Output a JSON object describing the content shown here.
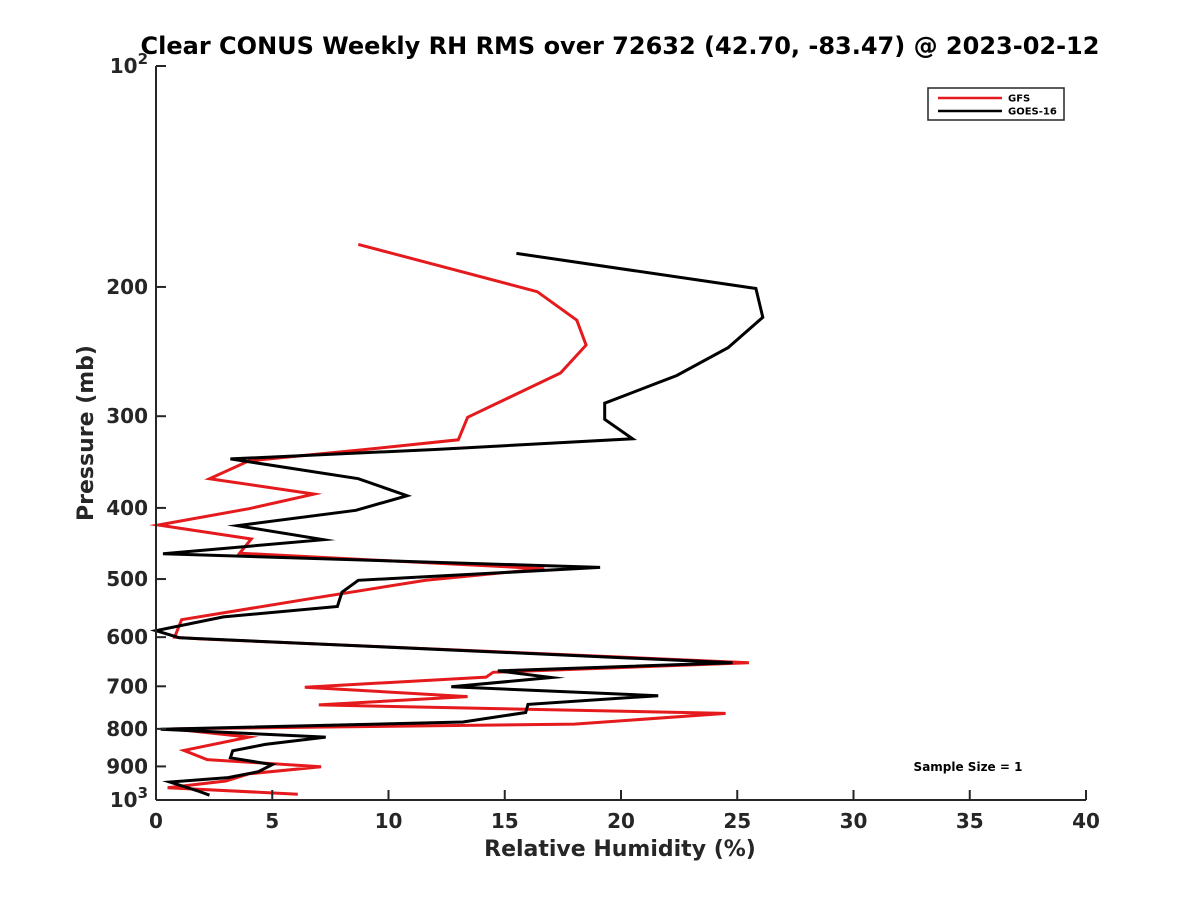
{
  "chart_data": {
    "type": "line",
    "title": "Clear CONUS Weekly RH RMS over 72632 (42.70, -83.47) @ 2023-02-12",
    "xlabel": "Relative Humidity (%)",
    "ylabel": "Pressure (mb)",
    "xlim": [
      0,
      40
    ],
    "ylim": [
      1000,
      100
    ],
    "yscale": "log",
    "y_reversed": true,
    "grid": false,
    "legend_position": "top-right",
    "x_ticks": [
      0,
      5,
      10,
      15,
      20,
      25,
      30,
      35,
      40
    ],
    "x_tick_labels": [
      "0",
      "5",
      "10",
      "15",
      "20",
      "25",
      "30",
      "35",
      "40"
    ],
    "y_ticks": [
      100,
      200,
      300,
      400,
      500,
      600,
      700,
      800,
      900,
      1000
    ],
    "y_tick_labels": [
      {
        "base": "10",
        "exp": "2"
      },
      {
        "base": "200"
      },
      {
        "base": "300"
      },
      {
        "base": "400"
      },
      {
        "base": "500"
      },
      {
        "base": "600"
      },
      {
        "base": "700"
      },
      {
        "base": "800"
      },
      {
        "base": "900"
      },
      {
        "base": "10",
        "exp": "3"
      }
    ],
    "annotation": "Sample Size = 1",
    "series": [
      {
        "name": "GFS",
        "color": "#e41a1c",
        "points": [
          [
            8.7,
            175
          ],
          [
            16.4,
            203
          ],
          [
            18.1,
            222
          ],
          [
            18.5,
            240
          ],
          [
            17.4,
            262
          ],
          [
            13.4,
            301
          ],
          [
            13.0,
            323
          ],
          [
            9.0,
            333
          ],
          [
            4.0,
            345
          ],
          [
            2.3,
            365
          ],
          [
            6.8,
            383
          ],
          [
            4.0,
            401
          ],
          [
            0.1,
            422
          ],
          [
            4.1,
            441
          ],
          [
            3.6,
            461
          ],
          [
            16.7,
            484
          ],
          [
            11.6,
            502
          ],
          [
            6.6,
            532
          ],
          [
            1.1,
            568
          ],
          [
            0.8,
            600
          ],
          [
            1.8,
            603
          ],
          [
            25.5,
            650
          ],
          [
            14.5,
            670
          ],
          [
            14.2,
            680
          ],
          [
            6.4,
            702
          ],
          [
            13.4,
            723
          ],
          [
            7.0,
            742
          ],
          [
            24.5,
            762
          ],
          [
            18.0,
            788
          ],
          [
            0.7,
            800
          ],
          [
            4.0,
            821
          ],
          [
            1.2,
            856
          ],
          [
            2.2,
            881
          ],
          [
            7.1,
            901
          ],
          [
            4.0,
            921
          ],
          [
            3.0,
            942
          ],
          [
            0.5,
            962
          ],
          [
            6.1,
            982
          ]
        ]
      },
      {
        "name": "GOES-16",
        "color": "#000000",
        "points": [
          [
            15.5,
            180
          ],
          [
            25.8,
            201
          ],
          [
            26.1,
            220
          ],
          [
            24.6,
            242
          ],
          [
            22.4,
            264
          ],
          [
            19.3,
            288
          ],
          [
            19.3,
            303
          ],
          [
            20.5,
            322
          ],
          [
            12.0,
            333
          ],
          [
            3.2,
            343
          ],
          [
            8.7,
            365
          ],
          [
            10.8,
            385
          ],
          [
            8.6,
            403
          ],
          [
            3.5,
            423
          ],
          [
            7.2,
            442
          ],
          [
            0.3,
            462
          ],
          [
            19.1,
            482
          ],
          [
            8.7,
            502
          ],
          [
            8.0,
            521
          ],
          [
            7.8,
            545
          ],
          [
            2.9,
            563
          ],
          [
            0.0,
            588
          ],
          [
            1.0,
            601
          ],
          [
            24.8,
            650
          ],
          [
            14.7,
            667
          ],
          [
            17.0,
            681
          ],
          [
            12.7,
            701
          ],
          [
            21.6,
            721
          ],
          [
            16.0,
            741
          ],
          [
            15.9,
            760
          ],
          [
            13.2,
            783
          ],
          [
            0.2,
            801
          ],
          [
            7.3,
            821
          ],
          [
            4.7,
            840
          ],
          [
            3.3,
            857
          ],
          [
            3.2,
            876
          ],
          [
            5.0,
            895
          ],
          [
            4.4,
            915
          ],
          [
            3.1,
            932
          ],
          [
            0.6,
            945
          ],
          [
            1.8,
            972
          ],
          [
            2.3,
            985
          ]
        ]
      }
    ]
  }
}
